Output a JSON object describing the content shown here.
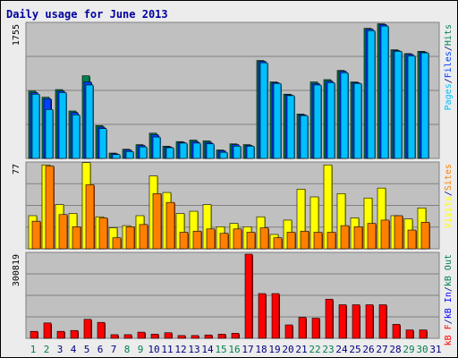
{
  "title": "Daily usage for June 2013",
  "colors": {
    "pages": "#00c0ff",
    "files": "#0040ff",
    "hits": "#00804f",
    "visits": "#ffff00",
    "sites": "#ff8000",
    "kbout": "#00804f",
    "kbin": "#0000ff",
    "kbf": "#ff0000",
    "dark": "#000080",
    "weekend": "#00804f",
    "weekday": "#000080"
  },
  "chart_data": [
    {
      "type": "bar",
      "panel": "hits-files-pages",
      "ymax_label": "1755",
      "ymax": 1755,
      "legend": [
        {
          "text": "Pages",
          "color": "#00c0ff"
        },
        {
          "text": "/",
          "color": "#000080"
        },
        {
          "text": "Files",
          "color": "#0040ff"
        },
        {
          "text": "/",
          "color": "#000080"
        },
        {
          "text": "Hits",
          "color": "#00804f"
        }
      ],
      "categories": [
        "1",
        "2",
        "3",
        "4",
        "5",
        "6",
        "7",
        "8",
        "9",
        "10",
        "11",
        "12",
        "13",
        "14",
        "15",
        "16",
        "17",
        "18",
        "19",
        "20",
        "21",
        "22",
        "23",
        "24",
        "25",
        "26",
        "27",
        "28",
        "29",
        "30",
        "31"
      ],
      "series": [
        {
          "name": "Hits",
          "values": [
            880,
            800,
            900,
            620,
            1080,
            430,
            70,
            120,
            180,
            330,
            160,
            220,
            240,
            230,
            110,
            190,
            180,
            1280,
            1000,
            840,
            580,
            1000,
            1030,
            1150,
            1000,
            1700,
            1760,
            1420,
            1370,
            1400,
            0
          ]
        },
        {
          "name": "Files",
          "values": [
            860,
            780,
            880,
            600,
            1000,
            410,
            60,
            110,
            170,
            310,
            150,
            210,
            220,
            210,
            100,
            180,
            170,
            1270,
            990,
            830,
            570,
            980,
            1010,
            1140,
            990,
            1690,
            1750,
            1410,
            1360,
            1390,
            0
          ]
        },
        {
          "name": "Pages",
          "values": [
            840,
            640,
            860,
            570,
            960,
            390,
            50,
            90,
            150,
            280,
            140,
            200,
            200,
            190,
            80,
            160,
            160,
            1250,
            980,
            820,
            560,
            960,
            990,
            1120,
            980,
            1670,
            1730,
            1400,
            1340,
            1380,
            0
          ]
        }
      ]
    },
    {
      "type": "bar",
      "panel": "visits-sites",
      "ymax_label": "77",
      "ymax": 77,
      "legend": [
        {
          "text": "Visits",
          "color": "#ffff00"
        },
        {
          "text": "/",
          "color": "#000080"
        },
        {
          "text": "Sites",
          "color": "#ff8000"
        }
      ],
      "categories": [
        "1",
        "2",
        "3",
        "4",
        "5",
        "6",
        "7",
        "8",
        "9",
        "10",
        "11",
        "12",
        "13",
        "14",
        "15",
        "16",
        "17",
        "18",
        "19",
        "20",
        "21",
        "22",
        "23",
        "24",
        "25",
        "26",
        "27",
        "28",
        "29",
        "30",
        "31"
      ],
      "series": [
        {
          "name": "Visits",
          "values": [
            30,
            76,
            40,
            32,
            78,
            29,
            19,
            21,
            30,
            66,
            51,
            32,
            34,
            40,
            20,
            23,
            20,
            29,
            13,
            26,
            54,
            47,
            76,
            50,
            28,
            46,
            55,
            30,
            27,
            37,
            0
          ]
        },
        {
          "name": "Sites",
          "values": [
            25,
            75,
            31,
            20,
            58,
            28,
            10,
            20,
            22,
            50,
            42,
            15,
            16,
            18,
            14,
            18,
            15,
            19,
            10,
            15,
            16,
            15,
            15,
            21,
            20,
            23,
            26,
            30,
            17,
            24,
            0
          ]
        }
      ]
    },
    {
      "type": "bar",
      "panel": "kbytes",
      "ymax_label": "300819",
      "ymax": 300819,
      "legend": [
        {
          "text": "kB F",
          "color": "#ff0000"
        },
        {
          "text": "/",
          "color": "#000080"
        },
        {
          "text": "kB In",
          "color": "#0000ff"
        },
        {
          "text": "/",
          "color": "#000080"
        },
        {
          "text": "kB Out",
          "color": "#00804f"
        }
      ],
      "categories": [
        "1",
        "2",
        "3",
        "4",
        "5",
        "6",
        "7",
        "8",
        "9",
        "10",
        "11",
        "12",
        "13",
        "14",
        "15",
        "16",
        "17",
        "18",
        "19",
        "20",
        "21",
        "22",
        "23",
        "24",
        "25",
        "26",
        "27",
        "28",
        "29",
        "30",
        "31"
      ],
      "series": [
        {
          "name": "kB F",
          "values": [
            25000,
            55000,
            25000,
            28000,
            68000,
            57000,
            13000,
            13000,
            22000,
            15000,
            20000,
            10000,
            10000,
            12000,
            15000,
            18000,
            300819,
            160000,
            160000,
            48000,
            75000,
            72000,
            140000,
            120000,
            120000,
            120000,
            120000,
            50000,
            30000,
            30000,
            0
          ]
        }
      ]
    }
  ]
}
